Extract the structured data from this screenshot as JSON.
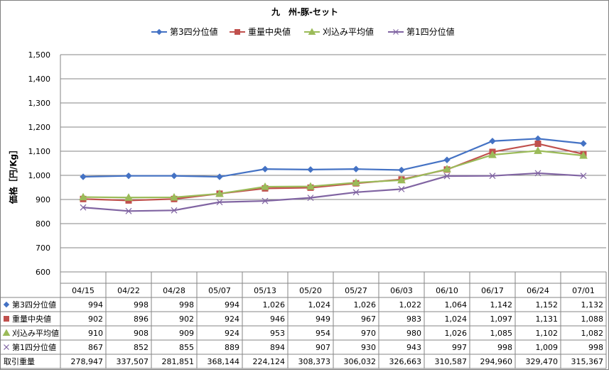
{
  "chart_data": {
    "type": "line",
    "title": "九　州-豚-セット",
    "ylabel": "価格［円/Kg］",
    "xlabel": "",
    "ylim": [
      600,
      1500
    ],
    "yticks": [
      "600",
      "700",
      "800",
      "900",
      "1,000",
      "1,100",
      "1,200",
      "1,300",
      "1,400",
      "1,500"
    ],
    "grid": true,
    "legend_placement": "top",
    "categories": [
      "04/15",
      "04/22",
      "04/28",
      "05/07",
      "05/13",
      "05/20",
      "05/27",
      "06/03",
      "06/10",
      "06/17",
      "06/24",
      "07/01"
    ],
    "series": [
      {
        "name": "第3四分位値",
        "color": "#4472c4",
        "marker": "diamond",
        "values": [
          994,
          998,
          998,
          994,
          1026,
          1024,
          1026,
          1022,
          1064,
          1142,
          1152,
          1132
        ],
        "labels": [
          "994",
          "998",
          "998",
          "994",
          "1,026",
          "1,024",
          "1,026",
          "1,022",
          "1,064",
          "1,142",
          "1,152",
          "1,132"
        ]
      },
      {
        "name": "重量中央値",
        "color": "#c0504d",
        "marker": "square",
        "values": [
          902,
          896,
          902,
          924,
          946,
          949,
          967,
          983,
          1024,
          1097,
          1131,
          1088
        ],
        "labels": [
          "902",
          "896",
          "902",
          "924",
          "946",
          "949",
          "967",
          "983",
          "1,024",
          "1,097",
          "1,131",
          "1,088"
        ]
      },
      {
        "name": "刈込み平均値",
        "color": "#9bbb59",
        "marker": "triangle",
        "values": [
          910,
          908,
          909,
          924,
          953,
          954,
          970,
          980,
          1026,
          1085,
          1102,
          1082
        ],
        "labels": [
          "910",
          "908",
          "909",
          "924",
          "953",
          "954",
          "970",
          "980",
          "1,026",
          "1,085",
          "1,102",
          "1,082"
        ]
      },
      {
        "name": "第1四分位値",
        "color": "#8064a2",
        "marker": "x",
        "values": [
          867,
          852,
          855,
          889,
          894,
          907,
          930,
          943,
          997,
          998,
          1009,
          998
        ],
        "labels": [
          "867",
          "852",
          "855",
          "889",
          "894",
          "907",
          "930",
          "943",
          "997",
          "998",
          "1,009",
          "998"
        ]
      }
    ],
    "table_extra_row": {
      "name": "取引重量",
      "values": [
        278947,
        337507,
        281851,
        368144,
        224124,
        308373,
        306032,
        326663,
        310587,
        294960,
        329470,
        315367
      ],
      "labels": [
        "278,947",
        "337,507",
        "281,851",
        "368,144",
        "224,124",
        "308,373",
        "306,032",
        "326,663",
        "310,587",
        "294,960",
        "329,470",
        "315,367"
      ]
    }
  }
}
